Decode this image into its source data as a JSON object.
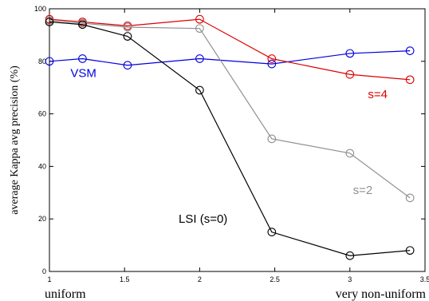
{
  "chart_data": {
    "type": "line",
    "xlim": [
      1,
      3.5
    ],
    "ylim": [
      0,
      100
    ],
    "x_ticks": [
      1,
      1.5,
      2,
      2.5,
      3,
      3.5
    ],
    "y_ticks": [
      0,
      20,
      40,
      60,
      80,
      100
    ],
    "x_tick_labels": [
      "1",
      "1.5",
      "2",
      "2.5",
      "3",
      "3.5"
    ],
    "y_tick_labels": [
      "0",
      "20",
      "40",
      "60",
      "80",
      "100"
    ],
    "ylabel": "average Kappa avg precision (%)",
    "x_end_labels": {
      "left": "uniform",
      "right": "very non-uniform"
    },
    "grid": false,
    "marker": "open-circle",
    "series": [
      {
        "name": "VSM",
        "color": "#0000dd",
        "label_pos": [
          1.14,
          74
        ],
        "x": [
          1,
          1.22,
          1.52,
          2,
          2.48,
          3,
          3.4
        ],
        "y": [
          80,
          81,
          78.5,
          81,
          79,
          83,
          84
        ]
      },
      {
        "name": "s=4",
        "color": "#dd0000",
        "label_pos": [
          3.12,
          66
        ],
        "x": [
          1,
          1.22,
          1.52,
          2,
          2.48,
          3,
          3.4
        ],
        "y": [
          96,
          95,
          93.5,
          96,
          81,
          75,
          73
        ]
      },
      {
        "name": "s=2",
        "color": "#909090",
        "label_pos": [
          3.02,
          29.5
        ],
        "x": [
          1,
          1.22,
          1.52,
          2,
          2.48,
          3,
          3.4
        ],
        "y": [
          95.5,
          94.5,
          93,
          92.5,
          50.5,
          45,
          28
        ]
      },
      {
        "name": "LSI (s=0)",
        "color": "#000000",
        "label_pos": [
          1.86,
          18.5
        ],
        "x": [
          1,
          1.22,
          1.52,
          2,
          2.48,
          3,
          3.4
        ],
        "y": [
          95,
          94,
          89.5,
          69,
          15,
          6,
          8
        ]
      }
    ]
  }
}
